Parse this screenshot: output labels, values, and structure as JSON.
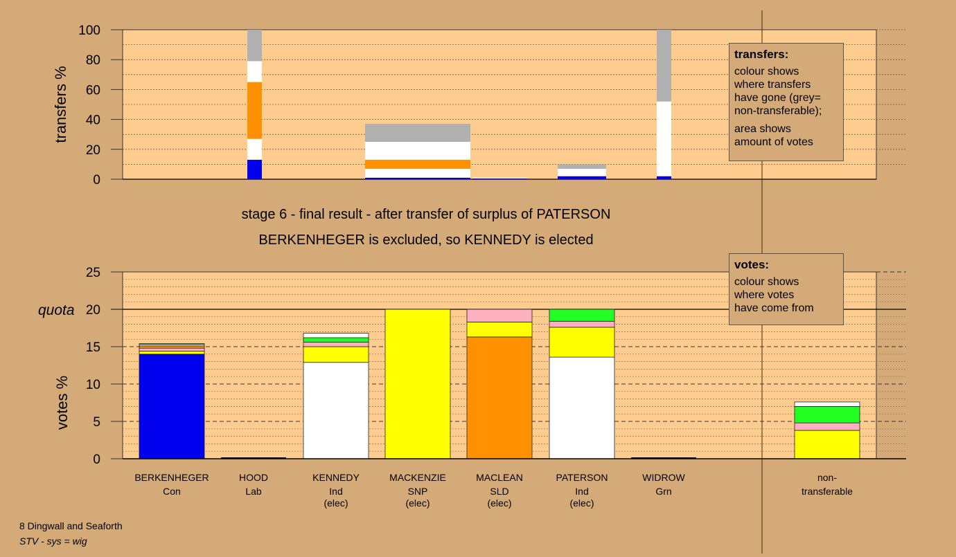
{
  "stage_title": "stage 6 - final result - after transfer of surplus of PATERSON",
  "stage_subtitle": "BERKENHEGER is excluded, so KENNEDY is elected",
  "transfers_legend": {
    "title": "transfers:",
    "lines1": [
      "colour shows",
      "where transfers",
      "have gone (grey=",
      "non-transferable);"
    ],
    "lines2": [
      "area shows",
      "amount of votes"
    ]
  },
  "votes_legend": {
    "title": "votes:",
    "lines": [
      "colour shows",
      "where votes",
      "have come from"
    ]
  },
  "footer": {
    "line1": "8 Dingwall and Seaforth",
    "line2": "STV - sys = wig"
  },
  "colors": {
    "plot_bg": "#ffcc90",
    "page_bg": "#d4aa78",
    "Con": "#0000ee",
    "Lab": "#ff1f1f",
    "Ind_Kennedy": "#ffffff",
    "SNP": "#ffff00",
    "SLD": "#ff9000",
    "Ind_Paterson": "#ffffff",
    "Grn": "#22ff22",
    "pink": "#ffb0c0",
    "nontransferable": "#b0b0b0"
  },
  "chart_data": [
    {
      "type": "bar",
      "name": "transfers",
      "ylabel": "transfers %",
      "ylim": [
        0,
        100
      ],
      "yticks": [
        0,
        20,
        40,
        60,
        80,
        100
      ],
      "grid": true,
      "bars": [
        {
          "source": "BERKENHEGER",
          "segments": [
            {
              "color": "#0000ee",
              "value": 13
            },
            {
              "color": "#ffffff",
              "value": 14
            },
            {
              "color": "#ff9000",
              "value": 38
            },
            {
              "color": "#ffffff",
              "value": 14
            },
            {
              "color": "#b0b0b0",
              "value": 21
            }
          ]
        },
        {
          "source": "MACKENZIE",
          "segments": [
            {
              "color": "#0000ee",
              "value": 1
            },
            {
              "color": "#ffffff",
              "value": 6
            },
            {
              "color": "#ff9000",
              "value": 6
            },
            {
              "color": "#ffffff",
              "value": 12
            },
            {
              "color": "#b0b0b0",
              "value": 12
            }
          ]
        },
        {
          "source": "MACLEAN",
          "segments": [
            {
              "color": "#0000ee",
              "value": 0.5
            },
            {
              "color": "#ffffff",
              "value": 0.5
            }
          ]
        },
        {
          "source": "PATERSON",
          "segments": [
            {
              "color": "#0000ee",
              "value": 2
            },
            {
              "color": "#ffffff",
              "value": 5
            },
            {
              "color": "#b0b0b0",
              "value": 3
            }
          ]
        },
        {
          "source": "WIDROW",
          "segments": [
            {
              "color": "#0000ee",
              "value": 2
            },
            {
              "color": "#ffffff",
              "value": 50
            },
            {
              "color": "#b0b0b0",
              "value": 48
            }
          ]
        }
      ]
    },
    {
      "type": "bar",
      "name": "votes",
      "ylabel": "votes %",
      "ylim": [
        0,
        25
      ],
      "yticks": [
        0,
        5,
        10,
        15,
        20,
        25
      ],
      "quota": 20,
      "quota_label": "quota",
      "grid": true,
      "categories": [
        {
          "name": "BERKENHEGER",
          "party": "Con",
          "status": ""
        },
        {
          "name": "HOOD",
          "party": "Lab",
          "status": ""
        },
        {
          "name": "KENNEDY",
          "party": "Ind",
          "status": "(elec)"
        },
        {
          "name": "MACKENZIE",
          "party": "SNP",
          "status": "(elec)"
        },
        {
          "name": "MACLEAN",
          "party": "SLD",
          "status": "(elec)"
        },
        {
          "name": "PATERSON",
          "party": "Ind",
          "status": "(elec)"
        },
        {
          "name": "WIDROW",
          "party": "Grn",
          "status": ""
        },
        {
          "name": "non-",
          "party": "transferable",
          "status": ""
        }
      ],
      "bars": [
        {
          "segments": [
            {
              "color": "#0000ee",
              "value": 14
            },
            {
              "color": "#ffff00",
              "value": 0.4
            },
            {
              "color": "#ffb0c0",
              "value": 0.4
            },
            {
              "color": "#ff9000",
              "value": 0.3
            },
            {
              "color": "#ffffff",
              "value": 0.2
            },
            {
              "color": "#22ff22",
              "value": 0.1
            }
          ]
        },
        {
          "segments": []
        },
        {
          "segments": [
            {
              "color": "#ffffff",
              "value": 12.9
            },
            {
              "color": "#ffff00",
              "value": 2.1
            },
            {
              "color": "#ffb0c0",
              "value": 0.6
            },
            {
              "color": "#22ff22",
              "value": 0.6
            },
            {
              "color": "#ffffff",
              "value": 0.6
            }
          ]
        },
        {
          "segments": [
            {
              "color": "#ffff00",
              "value": 20
            }
          ]
        },
        {
          "segments": [
            {
              "color": "#ff9000",
              "value": 16.3
            },
            {
              "color": "#ffff00",
              "value": 2
            },
            {
              "color": "#ffb0c0",
              "value": 1.7
            }
          ]
        },
        {
          "segments": [
            {
              "color": "#ffffff",
              "value": 13.6
            },
            {
              "color": "#ffff00",
              "value": 4
            },
            {
              "color": "#ffb0c0",
              "value": 0.8
            },
            {
              "color": "#22ff22",
              "value": 1.6
            }
          ]
        },
        {
          "segments": []
        },
        {
          "segments": [
            {
              "color": "#ffff00",
              "value": 3.8
            },
            {
              "color": "#ffb0c0",
              "value": 1
            },
            {
              "color": "#22ff22",
              "value": 2.2
            },
            {
              "color": "#ffffff",
              "value": 0.6
            }
          ]
        }
      ]
    }
  ]
}
